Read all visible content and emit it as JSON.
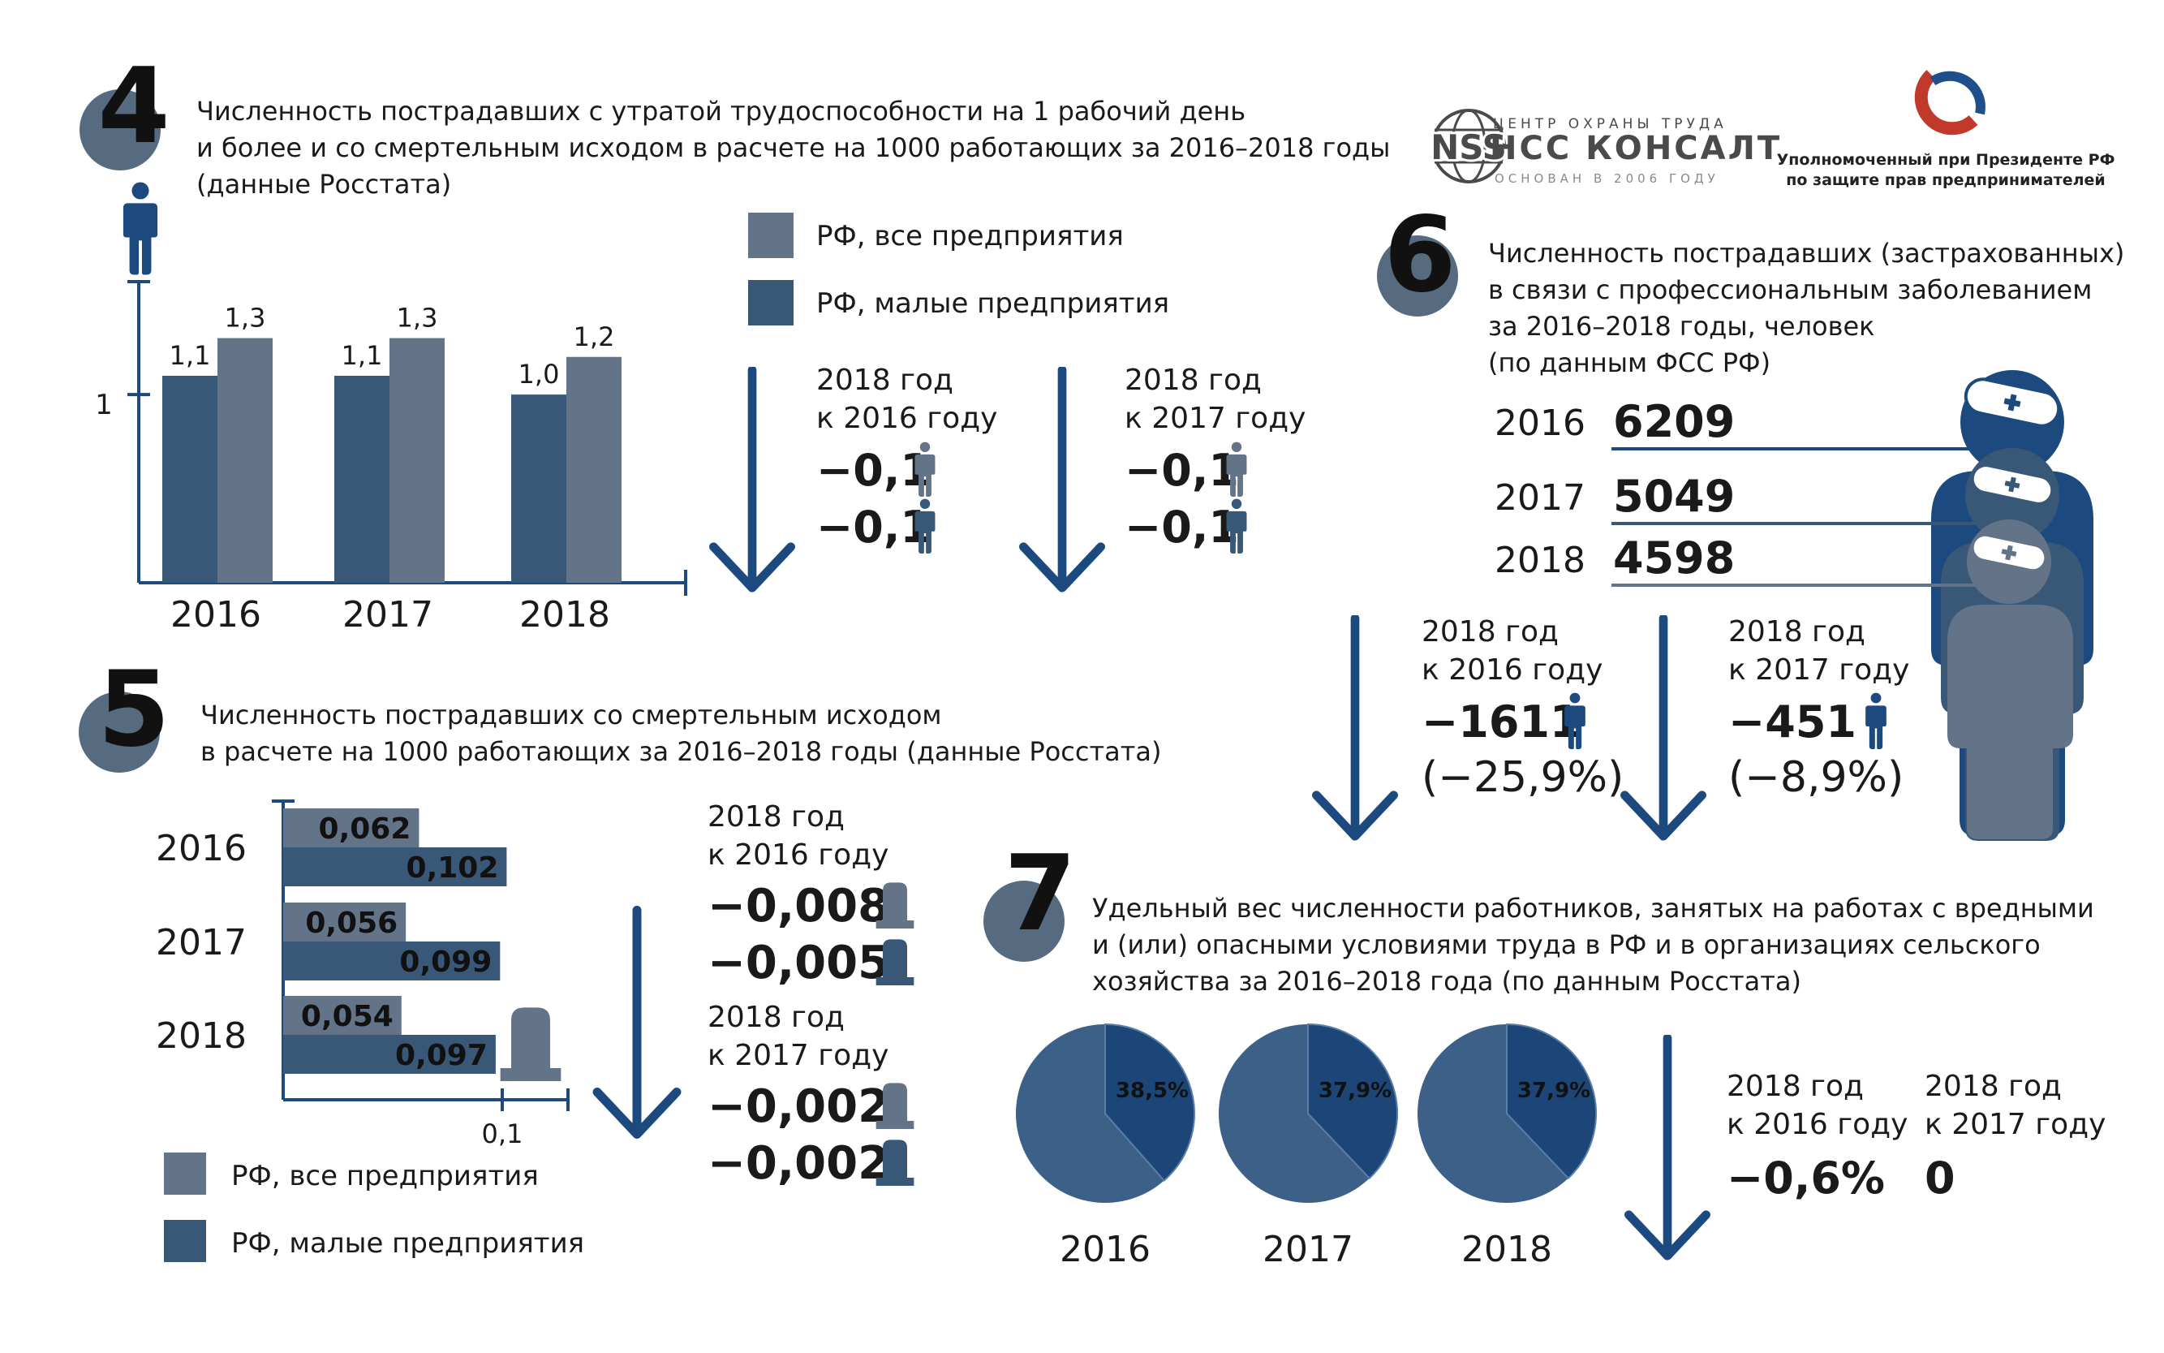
{
  "colors": {
    "all": "#637489",
    "small": "#395878",
    "dark_blue": "#1c4a7f",
    "circle": "#566b80",
    "pie_light": "#3d6088",
    "pie_dark": "#1b4677",
    "text": "#1a1a1a"
  },
  "header": {
    "nss_mark": "NSS",
    "nss_line1": "ЦЕНТР ОХРАНЫ ТРУДА",
    "nss_name": "НСС КОНСАЛТ",
    "nss_line3": "ОСНОВАН В 2006 ГОДУ",
    "ombudsman_line1": "Уполномоченный при Президенте РФ",
    "ombudsman_line2": "по защите прав предпринимателей"
  },
  "section4": {
    "number": "4",
    "title_lines": [
      "Численность пострадавших с утратой трудоспособности на 1 рабочий день",
      "и более и со смертельным исходом в расчете на 1000 работающих за 2016–2018 годы",
      "(данные Росстата)"
    ],
    "legend": {
      "all": "РФ, все предприятия",
      "small": "РФ, малые предприятия"
    },
    "comparisons": [
      {
        "line1": "2018 год",
        "line2": "к 2016 году",
        "v1": "−0,1",
        "v2": "−0,1"
      },
      {
        "line1": "2018 год",
        "line2": "к 2017 году",
        "v1": "−0,1",
        "v2": "−0,1"
      }
    ]
  },
  "section5": {
    "number": "5",
    "title_lines": [
      "Численность пострадавших со смертельным исходом",
      "в расчете на 1000 работающих за 2016–2018 годы (данные Росстата)"
    ],
    "legend": {
      "all": "РФ, все предприятия",
      "small": "РФ, малые предприятия"
    },
    "comparisons": [
      {
        "line1": "2018 год",
        "line2": "к 2016 году",
        "v1": "−0,008",
        "v2": "−0,005"
      },
      {
        "line1": "2018 год",
        "line2": "к 2017 году",
        "v1": "−0,002",
        "v2": "−0,002"
      }
    ]
  },
  "section6": {
    "number": "6",
    "title_lines": [
      "Численность пострадавших (застрахованных)",
      "в связи с профессиональным заболеванием",
      "за 2016–2018 годы, человек",
      "(по данным ФСС РФ)"
    ],
    "rows": [
      {
        "year": "2016",
        "value": "6209"
      },
      {
        "year": "2017",
        "value": "5049"
      },
      {
        "year": "2018",
        "value": "4598"
      }
    ],
    "comparisons": [
      {
        "line1": "2018 год",
        "line2": "к 2016 году",
        "v1": "−1611",
        "pct": "(−25,9%)"
      },
      {
        "line1": "2018 год",
        "line2": "к 2017 году",
        "v1": "−451",
        "pct": "(−8,9%)"
      }
    ]
  },
  "section7": {
    "number": "7",
    "title_lines": [
      "Удельный вес численности работников, занятых на работах с вредными",
      "и (или) опасными условиями труда в РФ и в организациях сельского",
      "хозяйства за 2016–2018 года (по данным Росстата)"
    ],
    "comparisons": [
      {
        "line1": "2018 год",
        "line2": "к 2016 году",
        "v1": "−0,6%"
      },
      {
        "line1": "2018 год",
        "line2": "к 2017 году",
        "v1": "0"
      }
    ]
  },
  "chart_data": [
    {
      "id": "section4-chart",
      "type": "bar",
      "title": "Численность пострадавших с утратой трудоспособности на 1 рабочий день и более и со смертельным исходом в расчете на 1000 работающих за 2016–2018 годы",
      "categories": [
        "2016",
        "2017",
        "2018"
      ],
      "series": [
        {
          "name": "РФ, малые предприятия",
          "values": [
            1.1,
            1.1,
            1.0
          ],
          "labels": [
            "1,1",
            "1,1",
            "1,0"
          ]
        },
        {
          "name": "РФ, все предприятия",
          "values": [
            1.3,
            1.3,
            1.2
          ],
          "labels": [
            "1,3",
            "1,3",
            "1,2"
          ]
        }
      ],
      "y_ticks": [
        {
          "value": 1,
          "label": "1"
        }
      ],
      "ylim": [
        0,
        1.6
      ]
    },
    {
      "id": "section5-chart",
      "type": "bar",
      "orientation": "horizontal",
      "title": "Численность пострадавших со смертельным исходом в расчете на 1000 работающих за 2016–2018 годы",
      "categories": [
        "2016",
        "2017",
        "2018"
      ],
      "series": [
        {
          "name": "РФ, все предприятия",
          "values": [
            0.062,
            0.056,
            0.054
          ],
          "labels": [
            "0,062",
            "0,056",
            "0,054"
          ]
        },
        {
          "name": "РФ, малые предприятия",
          "values": [
            0.102,
            0.099,
            0.097
          ],
          "labels": [
            "0,102",
            "0,099",
            "0,097"
          ]
        }
      ],
      "x_ticks": [
        {
          "value": 0.1,
          "label": "0,1"
        }
      ],
      "xlim": [
        0,
        0.13
      ]
    },
    {
      "id": "section7-pies",
      "type": "pie",
      "title": "Удельный вес численности работников, занятых на работах с вредными и (или) опасными условиями труда",
      "categories": [
        "2016",
        "2017",
        "2018"
      ],
      "values": [
        38.5,
        37.9,
        37.9
      ],
      "labels": [
        "38,5%",
        "37,9%",
        "37,9%"
      ]
    }
  ]
}
